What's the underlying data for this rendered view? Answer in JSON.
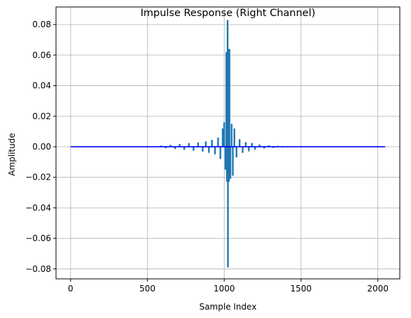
{
  "chart_data": {
    "type": "line",
    "title": "Impulse Response (Right Channel)",
    "xlabel": "Sample Index",
    "ylabel": "Amplitude",
    "xlim": [
      -95,
      2143
    ],
    "ylim": [
      -0.0865,
      0.0915
    ],
    "xticks": [
      0,
      500,
      1000,
      1500,
      2000
    ],
    "xtick_labels": [
      "0",
      "500",
      "1000",
      "1500",
      "2000"
    ],
    "yticks": [
      -0.08,
      -0.06,
      -0.04,
      -0.02,
      0.0,
      0.02,
      0.04,
      0.06,
      0.08
    ],
    "ytick_labels": [
      "−0.08",
      "−0.06",
      "−0.04",
      "−0.02",
      "0.00",
      "0.02",
      "0.04",
      "0.06",
      "0.08"
    ],
    "grid": true,
    "colors": {
      "impulse": "#1f77b4",
      "baseline": "#0000ff",
      "grid": "#b0b0b0"
    },
    "series": [
      {
        "style": "impulse",
        "x": [
          500,
          530,
          560,
          590,
          620,
          650,
          680,
          710,
          740,
          770,
          800,
          830,
          860,
          880,
          900,
          920,
          940,
          960,
          975,
          990,
          1000,
          1008,
          1014,
          1018,
          1022,
          1024,
          1026,
          1030,
          1034,
          1040,
          1048,
          1056,
          1066,
          1080,
          1100,
          1120,
          1140,
          1160,
          1180,
          1200,
          1230,
          1260,
          1290,
          1320,
          1350,
          1380,
          1410,
          1440,
          1470,
          1500,
          1530
        ],
        "y": [
          0.0002,
          -0.0002,
          0.0003,
          0.0008,
          -0.001,
          0.0012,
          -0.0015,
          0.0018,
          -0.002,
          0.0024,
          -0.0026,
          0.0028,
          -0.0032,
          0.0035,
          -0.004,
          0.0045,
          -0.005,
          0.006,
          -0.008,
          0.012,
          0.016,
          -0.015,
          0.062,
          -0.023,
          0.083,
          -0.079,
          0.064,
          -0.023,
          0.064,
          -0.021,
          0.015,
          -0.019,
          0.012,
          -0.007,
          0.005,
          -0.004,
          0.003,
          -0.003,
          0.0025,
          -0.002,
          0.0015,
          -0.0012,
          0.001,
          -0.0008,
          0.0006,
          -0.0005,
          0.0004,
          -0.0003,
          0.0002,
          -0.0002,
          0.0001
        ]
      },
      {
        "style": "baseline",
        "x": [
          0,
          2048
        ],
        "y": [
          0.0,
          0.0
        ]
      }
    ]
  }
}
